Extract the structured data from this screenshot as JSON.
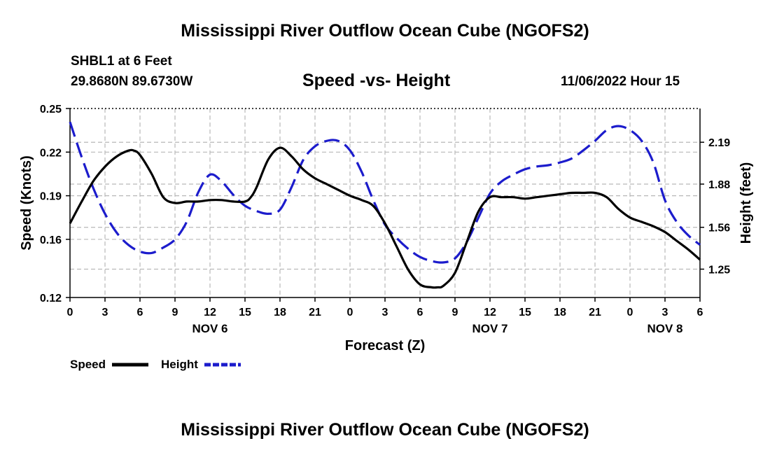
{
  "page": {
    "title_top": "Mississippi River Outflow Ocean Cube (NGOFS2)",
    "title_bottom": "Mississippi River Outflow Ocean Cube (NGOFS2)",
    "station": "SHBL1 at 6 Feet",
    "coordinates": "29.8680N  89.6730W",
    "datetime": "11/06/2022 Hour 15"
  },
  "chart_data": {
    "type": "line",
    "title": "Speed -vs- Height",
    "xlabel": "Forecast (Z)",
    "ylabel": "Speed (Knots)",
    "y2label": "Height (feet)",
    "xlim": [
      0,
      54
    ],
    "ylim": [
      0.12,
      0.25
    ],
    "y2lim": [
      1.04,
      2.44
    ],
    "yticks": [
      "0.25",
      "0.22",
      "0.19",
      "0.16",
      "0.12"
    ],
    "ytick_values": [
      0.25,
      0.22,
      0.19,
      0.16,
      0.12
    ],
    "y2ticks": [
      "2.19",
      "1.88",
      "1.56",
      "1.25"
    ],
    "y2tick_values": [
      2.19,
      1.88,
      1.56,
      1.25
    ],
    "xticks": [
      "0",
      "3",
      "6",
      "9",
      "12",
      "15",
      "18",
      "21",
      "0",
      "3",
      "6",
      "9",
      "12",
      "15",
      "18",
      "21",
      "0",
      "3",
      "6"
    ],
    "xtick_values": [
      0,
      3,
      6,
      9,
      12,
      15,
      18,
      21,
      24,
      27,
      30,
      33,
      36,
      39,
      42,
      45,
      48,
      51,
      54
    ],
    "day_labels": [
      {
        "label": "NOV 6",
        "x": 12
      },
      {
        "label": "NOV 7",
        "x": 36
      },
      {
        "label": "NOV 8",
        "x": 51
      }
    ],
    "grid": true,
    "legend_position": "bottom-left",
    "series": [
      {
        "name": "Speed",
        "axis": "left",
        "color": "#000000",
        "style": "solid",
        "x": [
          0,
          1,
          2,
          3,
          4,
          5,
          5.5,
          6,
          7,
          8,
          9,
          10,
          11,
          12,
          13,
          14,
          15,
          15.5,
          16,
          17,
          18,
          19,
          20,
          21,
          22,
          23,
          24,
          25,
          26,
          27,
          28,
          29,
          30,
          31,
          31.5,
          32,
          33,
          34,
          35,
          36,
          37,
          38,
          39,
          40,
          41,
          42,
          43,
          44,
          45,
          46,
          47,
          48,
          49,
          50,
          51,
          52,
          53,
          54
        ],
        "values": [
          0.171,
          0.186,
          0.2,
          0.21,
          0.217,
          0.221,
          0.221,
          0.218,
          0.205,
          0.189,
          0.185,
          0.186,
          0.186,
          0.187,
          0.187,
          0.186,
          0.186,
          0.189,
          0.196,
          0.215,
          0.223,
          0.217,
          0.208,
          0.202,
          0.198,
          0.194,
          0.19,
          0.187,
          0.183,
          0.171,
          0.155,
          0.139,
          0.129,
          0.127,
          0.127,
          0.128,
          0.137,
          0.158,
          0.179,
          0.189,
          0.189,
          0.189,
          0.188,
          0.189,
          0.19,
          0.191,
          0.192,
          0.192,
          0.192,
          0.189,
          0.181,
          0.175,
          0.172,
          0.169,
          0.165,
          0.159,
          0.153,
          0.146
        ]
      },
      {
        "name": "Height",
        "axis": "right",
        "color": "#1c1ccc",
        "style": "dashed",
        "x": [
          0,
          1,
          2,
          3,
          4,
          5,
          6,
          7,
          8,
          9,
          10,
          11,
          12,
          13,
          14,
          15,
          16,
          17,
          18,
          19,
          20,
          21,
          22,
          23,
          24,
          25,
          26,
          27,
          28,
          29,
          30,
          31,
          32,
          33,
          34,
          35,
          36,
          37,
          38,
          39,
          40,
          41,
          42,
          43,
          44,
          45,
          46,
          47,
          48,
          49,
          50,
          51,
          52,
          53,
          54
        ],
        "values": [
          2.34,
          2.08,
          1.85,
          1.66,
          1.52,
          1.43,
          1.38,
          1.37,
          1.41,
          1.47,
          1.6,
          1.82,
          1.95,
          1.9,
          1.8,
          1.72,
          1.68,
          1.66,
          1.69,
          1.86,
          2.06,
          2.16,
          2.2,
          2.2,
          2.13,
          1.97,
          1.76,
          1.58,
          1.48,
          1.4,
          1.34,
          1.31,
          1.3,
          1.33,
          1.45,
          1.63,
          1.81,
          1.9,
          1.95,
          1.99,
          2.01,
          2.02,
          2.04,
          2.07,
          2.13,
          2.2,
          2.28,
          2.31,
          2.28,
          2.2,
          2.04,
          1.76,
          1.6,
          1.5,
          1.43
        ]
      }
    ]
  }
}
